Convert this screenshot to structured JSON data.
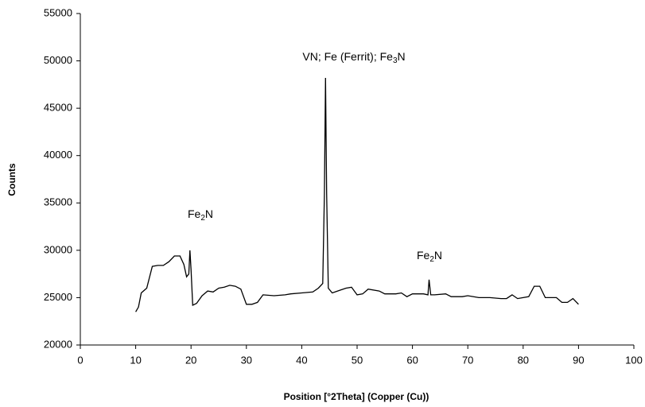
{
  "chart_data": {
    "type": "line",
    "x_label": "Position [°2Theta]  (Copper (Cu))",
    "y_label": "Counts",
    "annotations": [
      [
        "Fe",
        "2",
        "N"
      ],
      [
        "VN; Fe (Ferrit); Fe",
        "3",
        "N"
      ],
      [
        "Fe",
        "2",
        "N"
      ]
    ],
    "x": [
      10,
      10.5,
      11,
      12,
      13,
      14,
      15,
      16,
      17,
      18,
      18.7,
      19.2,
      19.6,
      19.8,
      20,
      20.3,
      21,
      22,
      23,
      24,
      25,
      26,
      27,
      28,
      29,
      30,
      31,
      32,
      33,
      35,
      37,
      38,
      40,
      42,
      43,
      43.8,
      44.1,
      44.3,
      44.5,
      44.8,
      45.5,
      47,
      48,
      49,
      50,
      51,
      52,
      54,
      55,
      57,
      58,
      59,
      60,
      62,
      62.8,
      63,
      63.3,
      64,
      66,
      67,
      69,
      70,
      72,
      74,
      76,
      77,
      78,
      79,
      81,
      82,
      83,
      84,
      86,
      87,
      88,
      89,
      90
    ],
    "values": [
      23500,
      24000,
      25500,
      26000,
      28300,
      28400,
      28400,
      28800,
      29400,
      29400,
      28500,
      27200,
      27500,
      30000,
      28000,
      24200,
      24400,
      25200,
      25700,
      25600,
      26000,
      26100,
      26300,
      26200,
      25900,
      24300,
      24300,
      24500,
      25300,
      25200,
      25300,
      25400,
      25500,
      25600,
      26000,
      26500,
      36000,
      48200,
      36000,
      26000,
      25500,
      25800,
      26000,
      26100,
      25300,
      25400,
      25900,
      25700,
      25400,
      25400,
      25500,
      25100,
      25400,
      25400,
      25300,
      26900,
      25300,
      25300,
      25400,
      25100,
      25100,
      25200,
      25000,
      25000,
      24900,
      24900,
      25300,
      24900,
      25100,
      26200,
      26200,
      25000,
      25000,
      24500,
      24500,
      24900,
      24300
    ],
    "color": "#000000",
    "xlim": [
      0,
      100
    ],
    "xticks": [
      0,
      10,
      20,
      30,
      40,
      50,
      60,
      70,
      80,
      90,
      100
    ],
    "ylim": [
      20000,
      55000
    ],
    "yticks": [
      20000,
      25000,
      30000,
      35000,
      40000,
      45000,
      50000,
      55000
    ],
    "grid": false
  }
}
